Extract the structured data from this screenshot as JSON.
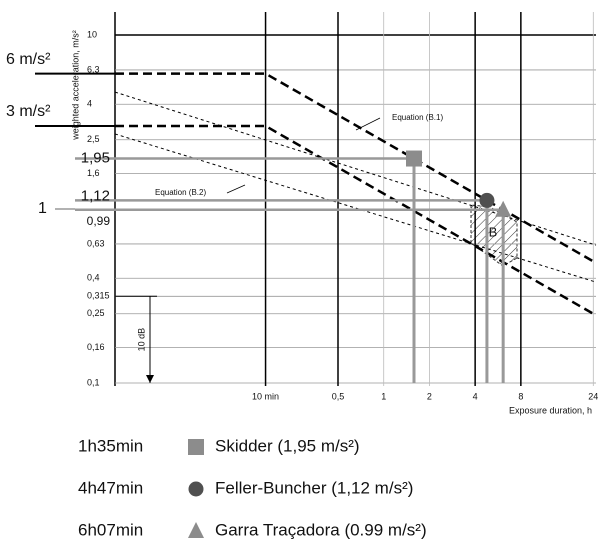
{
  "chart_data": {
    "type": "line",
    "x_label": "Exposure duration, h",
    "y_label": "weighted acceleration, m/s²",
    "log_x": true,
    "log_y": true,
    "xlim": [
      0.017,
      25
    ],
    "ylim": [
      0.1,
      10
    ],
    "xticks": [
      {
        "value": 0.1667,
        "label": "10 min"
      },
      {
        "value": 0.5,
        "label": "0,5"
      },
      1,
      2,
      4,
      8,
      24
    ],
    "yticks": [
      {
        "value": 0.1,
        "label": "0,1"
      },
      {
        "value": 0.16,
        "label": "0,16"
      },
      {
        "value": 0.25,
        "label": "0,25"
      },
      {
        "value": 0.315,
        "label": "0,315"
      },
      {
        "value": 0.4,
        "label": "0,4"
      },
      {
        "value": 0.63,
        "label": "0,63"
      },
      {
        "value": 1.6,
        "label": "1,6"
      },
      {
        "value": 2.5,
        "label": "2,5"
      },
      4,
      {
        "value": 6.3,
        "label": "6,3"
      },
      10
    ],
    "grid": true,
    "reference_levels": [
      {
        "value": 6,
        "label": "6 m/s²"
      },
      {
        "value": 3,
        "label": "3 m/s²"
      },
      {
        "value": 1,
        "label": "1"
      }
    ],
    "series": [
      {
        "name": "Equation (B.1)",
        "style": "dashed",
        "color": "#000000",
        "x": [
          0.017,
          0.1667,
          24
        ],
        "values": [
          6,
          6,
          0.5
        ]
      },
      {
        "style": "dashed",
        "color": "#000000",
        "x": [
          0.017,
          0.1667,
          24
        ],
        "values": [
          3,
          3,
          0.25
        ]
      },
      {
        "name": "Equation (B.2)",
        "style": "dotted",
        "color": "#000000",
        "x": [
          0.017,
          25
        ],
        "values": [
          4.7,
          0.62
        ]
      },
      {
        "style": "dotted",
        "color": "#000000",
        "x": [
          0.017,
          25
        ],
        "values": [
          2.7,
          0.38
        ]
      }
    ],
    "zone_label": "B",
    "points": [
      {
        "name": "Skidder  (1,95 m/s²)",
        "time_label": "1h35min",
        "marker": "square",
        "color": "#8c8c8c",
        "x": 1.583,
        "y": 1.95,
        "value_label": "1,95"
      },
      {
        "name": "Feller-Buncher  (1,12 m/s²)",
        "time_label": "4h47min",
        "marker": "circle",
        "color": "#505050",
        "x": 4.783,
        "y": 1.12,
        "value_label": "1,12"
      },
      {
        "name": "Garra Traçadora  (0.99 m/s²)",
        "time_label": "6h07min",
        "marker": "triangle",
        "color": "#8c8c8c",
        "x": 6.117,
        "y": 0.99,
        "value_label": "0,99"
      }
    ],
    "db_span": {
      "label": "10 dB",
      "from": 0.315,
      "to": 0.1
    }
  }
}
